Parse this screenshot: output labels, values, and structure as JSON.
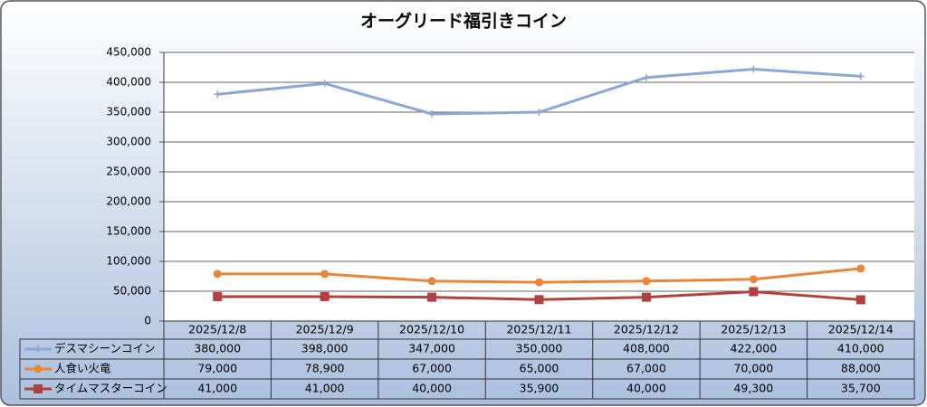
{
  "chart_data": {
    "type": "line",
    "title": "オーグリード福引きコイン",
    "categories": [
      "2025/12/8",
      "2025/12/9",
      "2025/12/10",
      "2025/12/11",
      "2025/12/12",
      "2025/12/13",
      "2025/12/14"
    ],
    "series": [
      {
        "name": "デスマシーンコイン",
        "color": "#8ea6d2",
        "marker": "plus",
        "values": [
          380000,
          398000,
          347000,
          350000,
          408000,
          422000,
          410000
        ],
        "value_labels": [
          "380,000",
          "398,000",
          "347,000",
          "350,000",
          "408,000",
          "422,000",
          "410,000"
        ]
      },
      {
        "name": "人食い火竜",
        "color": "#e8873a",
        "marker": "circle",
        "values": [
          79000,
          78900,
          67000,
          65000,
          67000,
          70000,
          88000
        ],
        "value_labels": [
          "79,000",
          "78,900",
          "67,000",
          "65,000",
          "67,000",
          "70,000",
          "88,000"
        ]
      },
      {
        "name": "タイムマスターコイン",
        "color": "#b0413e",
        "marker": "square",
        "values": [
          41000,
          41000,
          40000,
          35900,
          40000,
          49300,
          35700
        ],
        "value_labels": [
          "41,000",
          "41,000",
          "40,000",
          "35,900",
          "40,000",
          "49,300",
          "35,700"
        ]
      }
    ],
    "ylim": [
      0,
      450000
    ],
    "yticks": [
      0,
      {
        "value": 50000,
        "label": "50,000"
      },
      {
        "value": 100000,
        "label": "100,000"
      },
      {
        "value": 150000,
        "label": "150,000"
      },
      {
        "value": 200000,
        "label": "200,000"
      },
      {
        "value": 250000,
        "label": "250,000"
      },
      {
        "value": 300000,
        "label": "300,000"
      },
      {
        "value": 350000,
        "label": "350,000"
      },
      {
        "value": 400000,
        "label": "400,000"
      },
      {
        "value": 450000,
        "label": "450,000"
      }
    ],
    "grid": true,
    "data_table": true
  }
}
